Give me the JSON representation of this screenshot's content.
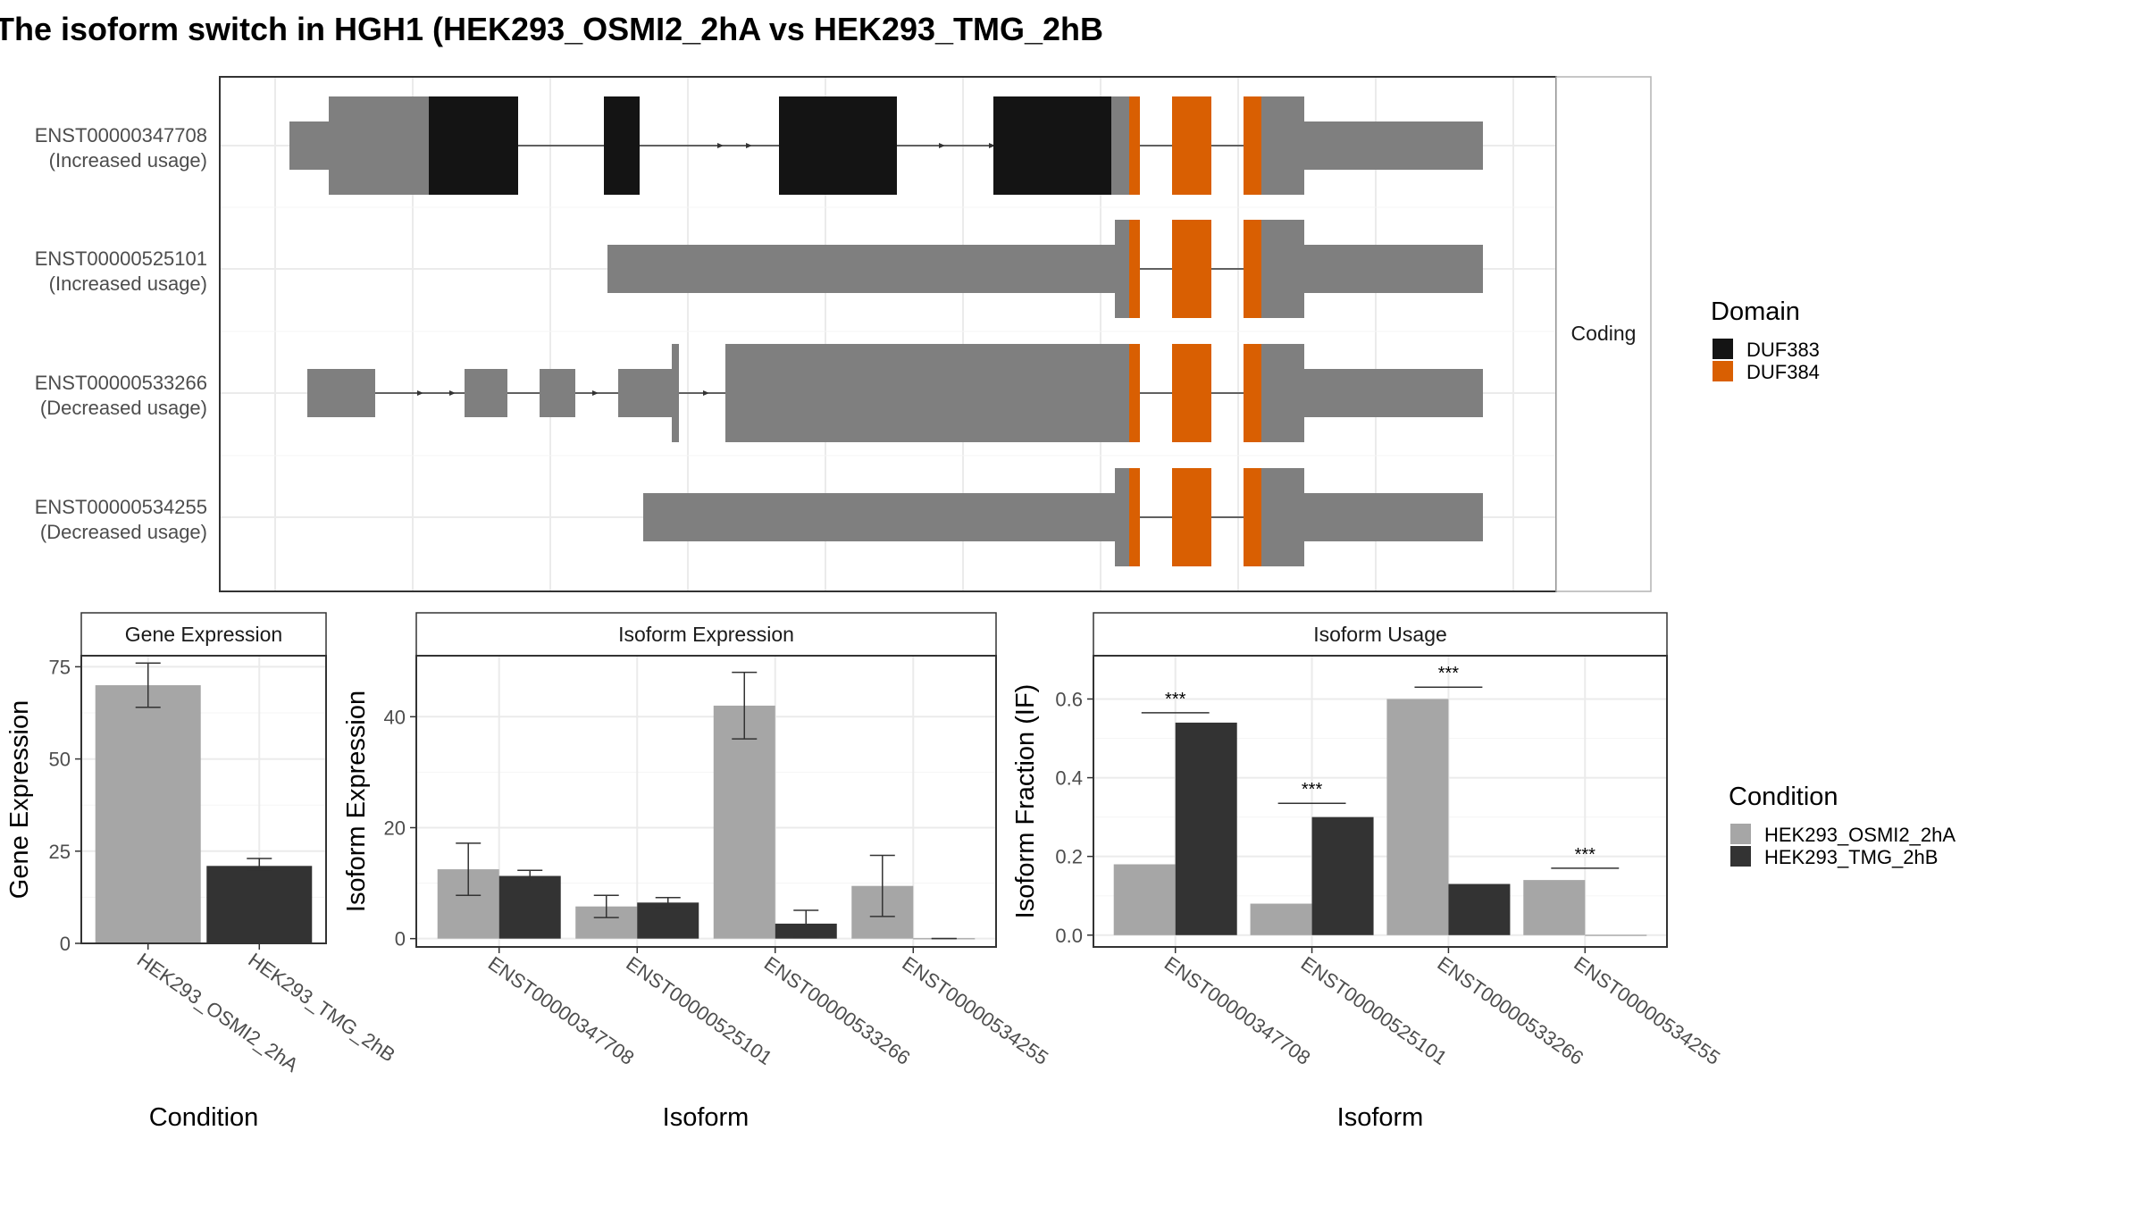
{
  "title": "The isoform switch in HGH1 (HEK293_OSMI2_2hA vs HEK293_TMG_2hB",
  "colors": {
    "cond_a": "#a6a6a6",
    "cond_b": "#333333",
    "exon": "#7f7f7f",
    "duf383": "#141414",
    "duf384": "#d95f02"
  },
  "chart_data": [
    {
      "type": "gene-structure",
      "strip_label": "Coding",
      "legend": {
        "title": "Domain",
        "items": [
          {
            "label": "DUF383",
            "color": "#141414"
          },
          {
            "label": "DUF384",
            "color": "#d95f02"
          }
        ]
      },
      "isoforms": [
        {
          "id": "ENST00000347708",
          "usage": "(Increased usage)",
          "segments": [
            {
              "s": 0.03,
              "e": 0.29,
              "t": "utr"
            },
            {
              "s": 0.14,
              "e": 0.42,
              "t": "cds"
            },
            {
              "s": 0.42,
              "e": 0.67,
              "t": "DUF383"
            },
            {
              "s": 0.91,
              "e": 1.01,
              "t": "DUF383"
            },
            {
              "s": 1.4,
              "e": 1.73,
              "t": "DUF383"
            },
            {
              "s": 2.0,
              "e": 2.33,
              "t": "DUF383"
            },
            {
              "s": 2.33,
              "e": 2.38,
              "t": "cds"
            },
            {
              "s": 2.38,
              "e": 2.41,
              "t": "DUF384"
            },
            {
              "s": 2.5,
              "e": 2.61,
              "t": "DUF384"
            },
            {
              "s": 2.7,
              "e": 2.75,
              "t": "DUF384"
            },
            {
              "s": 2.75,
              "e": 2.87,
              "t": "cds"
            },
            {
              "s": 2.87,
              "e": 3.37,
              "t": "utr"
            }
          ],
          "arrows": [
            1.24,
            1.32,
            1.86,
            2.0
          ]
        },
        {
          "id": "ENST00000525101",
          "usage": "(Increased usage)",
          "segments": [
            {
              "s": 0.92,
              "e": 2.34,
              "t": "utr"
            },
            {
              "s": 2.34,
              "e": 2.38,
              "t": "cds"
            },
            {
              "s": 2.38,
              "e": 2.41,
              "t": "DUF384"
            },
            {
              "s": 2.5,
              "e": 2.61,
              "t": "DUF384"
            },
            {
              "s": 2.7,
              "e": 2.75,
              "t": "DUF384"
            },
            {
              "s": 2.75,
              "e": 2.87,
              "t": "cds"
            },
            {
              "s": 2.87,
              "e": 3.37,
              "t": "utr"
            }
          ],
          "arrows": []
        },
        {
          "id": "ENST00000533266",
          "usage": "(Decreased usage)",
          "segments": [
            {
              "s": 0.08,
              "e": 0.27,
              "t": "utr"
            },
            {
              "s": 0.52,
              "e": 0.64,
              "t": "utr"
            },
            {
              "s": 0.73,
              "e": 0.83,
              "t": "utr"
            },
            {
              "s": 0.95,
              "e": 1.11,
              "t": "utr"
            },
            {
              "s": 1.1,
              "e": 1.12,
              "t": "cds"
            },
            {
              "s": 1.25,
              "e": 1.37,
              "t": "cds"
            },
            {
              "s": 1.37,
              "e": 2.38,
              "t": "cds"
            },
            {
              "s": 2.38,
              "e": 2.41,
              "t": "DUF384"
            },
            {
              "s": 2.5,
              "e": 2.61,
              "t": "DUF384"
            },
            {
              "s": 2.7,
              "e": 2.75,
              "t": "DUF384"
            },
            {
              "s": 2.75,
              "e": 2.87,
              "t": "cds"
            },
            {
              "s": 2.87,
              "e": 3.37,
              "t": "utr"
            }
          ],
          "arrows": [
            0.4,
            0.49,
            0.58,
            0.89,
            0.98,
            1.2,
            1.34
          ]
        },
        {
          "id": "ENST00000534255",
          "usage": "(Decreased usage)",
          "segments": [
            {
              "s": 1.02,
              "e": 2.34,
              "t": "utr"
            },
            {
              "s": 2.34,
              "e": 2.38,
              "t": "cds"
            },
            {
              "s": 2.38,
              "e": 2.41,
              "t": "DUF384"
            },
            {
              "s": 2.5,
              "e": 2.61,
              "t": "DUF384"
            },
            {
              "s": 2.7,
              "e": 2.75,
              "t": "DUF384"
            },
            {
              "s": 2.75,
              "e": 2.87,
              "t": "cds"
            },
            {
              "s": 2.87,
              "e": 3.37,
              "t": "utr"
            }
          ],
          "arrows": []
        }
      ]
    },
    {
      "type": "bar",
      "title": "Gene Expression",
      "xlabel": "Condition",
      "ylabel": "Gene Expression",
      "ylim": [
        0,
        78
      ],
      "yticks": [
        0,
        25,
        50,
        75
      ],
      "categories": [
        "HEK293_OSMI2_2hA",
        "HEK293_TMG_2hB"
      ],
      "values": [
        70,
        21
      ],
      "err_low": [
        64,
        20
      ],
      "err_high": [
        76,
        23
      ]
    },
    {
      "type": "bar",
      "title": "Isoform Expression",
      "xlabel": "Isoform",
      "ylabel": "Isoform Expression",
      "ylim": [
        -1.5,
        51
      ],
      "yticks": [
        0,
        20,
        40
      ],
      "categories": [
        "ENST00000347708",
        "ENST00000525101",
        "ENST00000533266",
        "ENST00000534255"
      ],
      "series": [
        {
          "values": [
            12.5,
            5.8,
            42,
            9.5
          ],
          "err_low": [
            7.8,
            3.8,
            36,
            4
          ],
          "err_high": [
            17.2,
            7.8,
            48,
            15
          ]
        },
        {
          "values": [
            11.3,
            6.5,
            2.7,
            0
          ],
          "err_low": [
            10.3,
            5.6,
            0.3,
            0
          ],
          "err_high": [
            12.3,
            7.4,
            5.1,
            0
          ]
        }
      ]
    },
    {
      "type": "bar",
      "title": "Isoform Usage",
      "xlabel": "Isoform",
      "ylabel": "Isoform Fraction (IF)",
      "ylim": [
        -0.03,
        0.71
      ],
      "yticks": [
        0.0,
        0.2,
        0.4,
        0.6
      ],
      "ytick_labels": [
        "0.0",
        "0.2",
        "0.4",
        "0.6"
      ],
      "categories": [
        "ENST00000347708",
        "ENST00000525101",
        "ENST00000533266",
        "ENST00000534255"
      ],
      "series": [
        {
          "values": [
            0.18,
            0.08,
            0.6,
            0.14
          ]
        },
        {
          "values": [
            0.54,
            0.3,
            0.13,
            0
          ]
        }
      ],
      "significance": [
        {
          "label": "***",
          "y": 0.565
        },
        {
          "label": "***",
          "y": 0.335
        },
        {
          "label": "***",
          "y": 0.63
        },
        {
          "label": "***",
          "y": 0.17
        }
      ]
    }
  ],
  "condition_legend": {
    "title": "Condition",
    "items": [
      {
        "label": "HEK293_OSMI2_2hA",
        "color": "#a6a6a6"
      },
      {
        "label": "HEK293_TMG_2hB",
        "color": "#333333"
      }
    ]
  }
}
